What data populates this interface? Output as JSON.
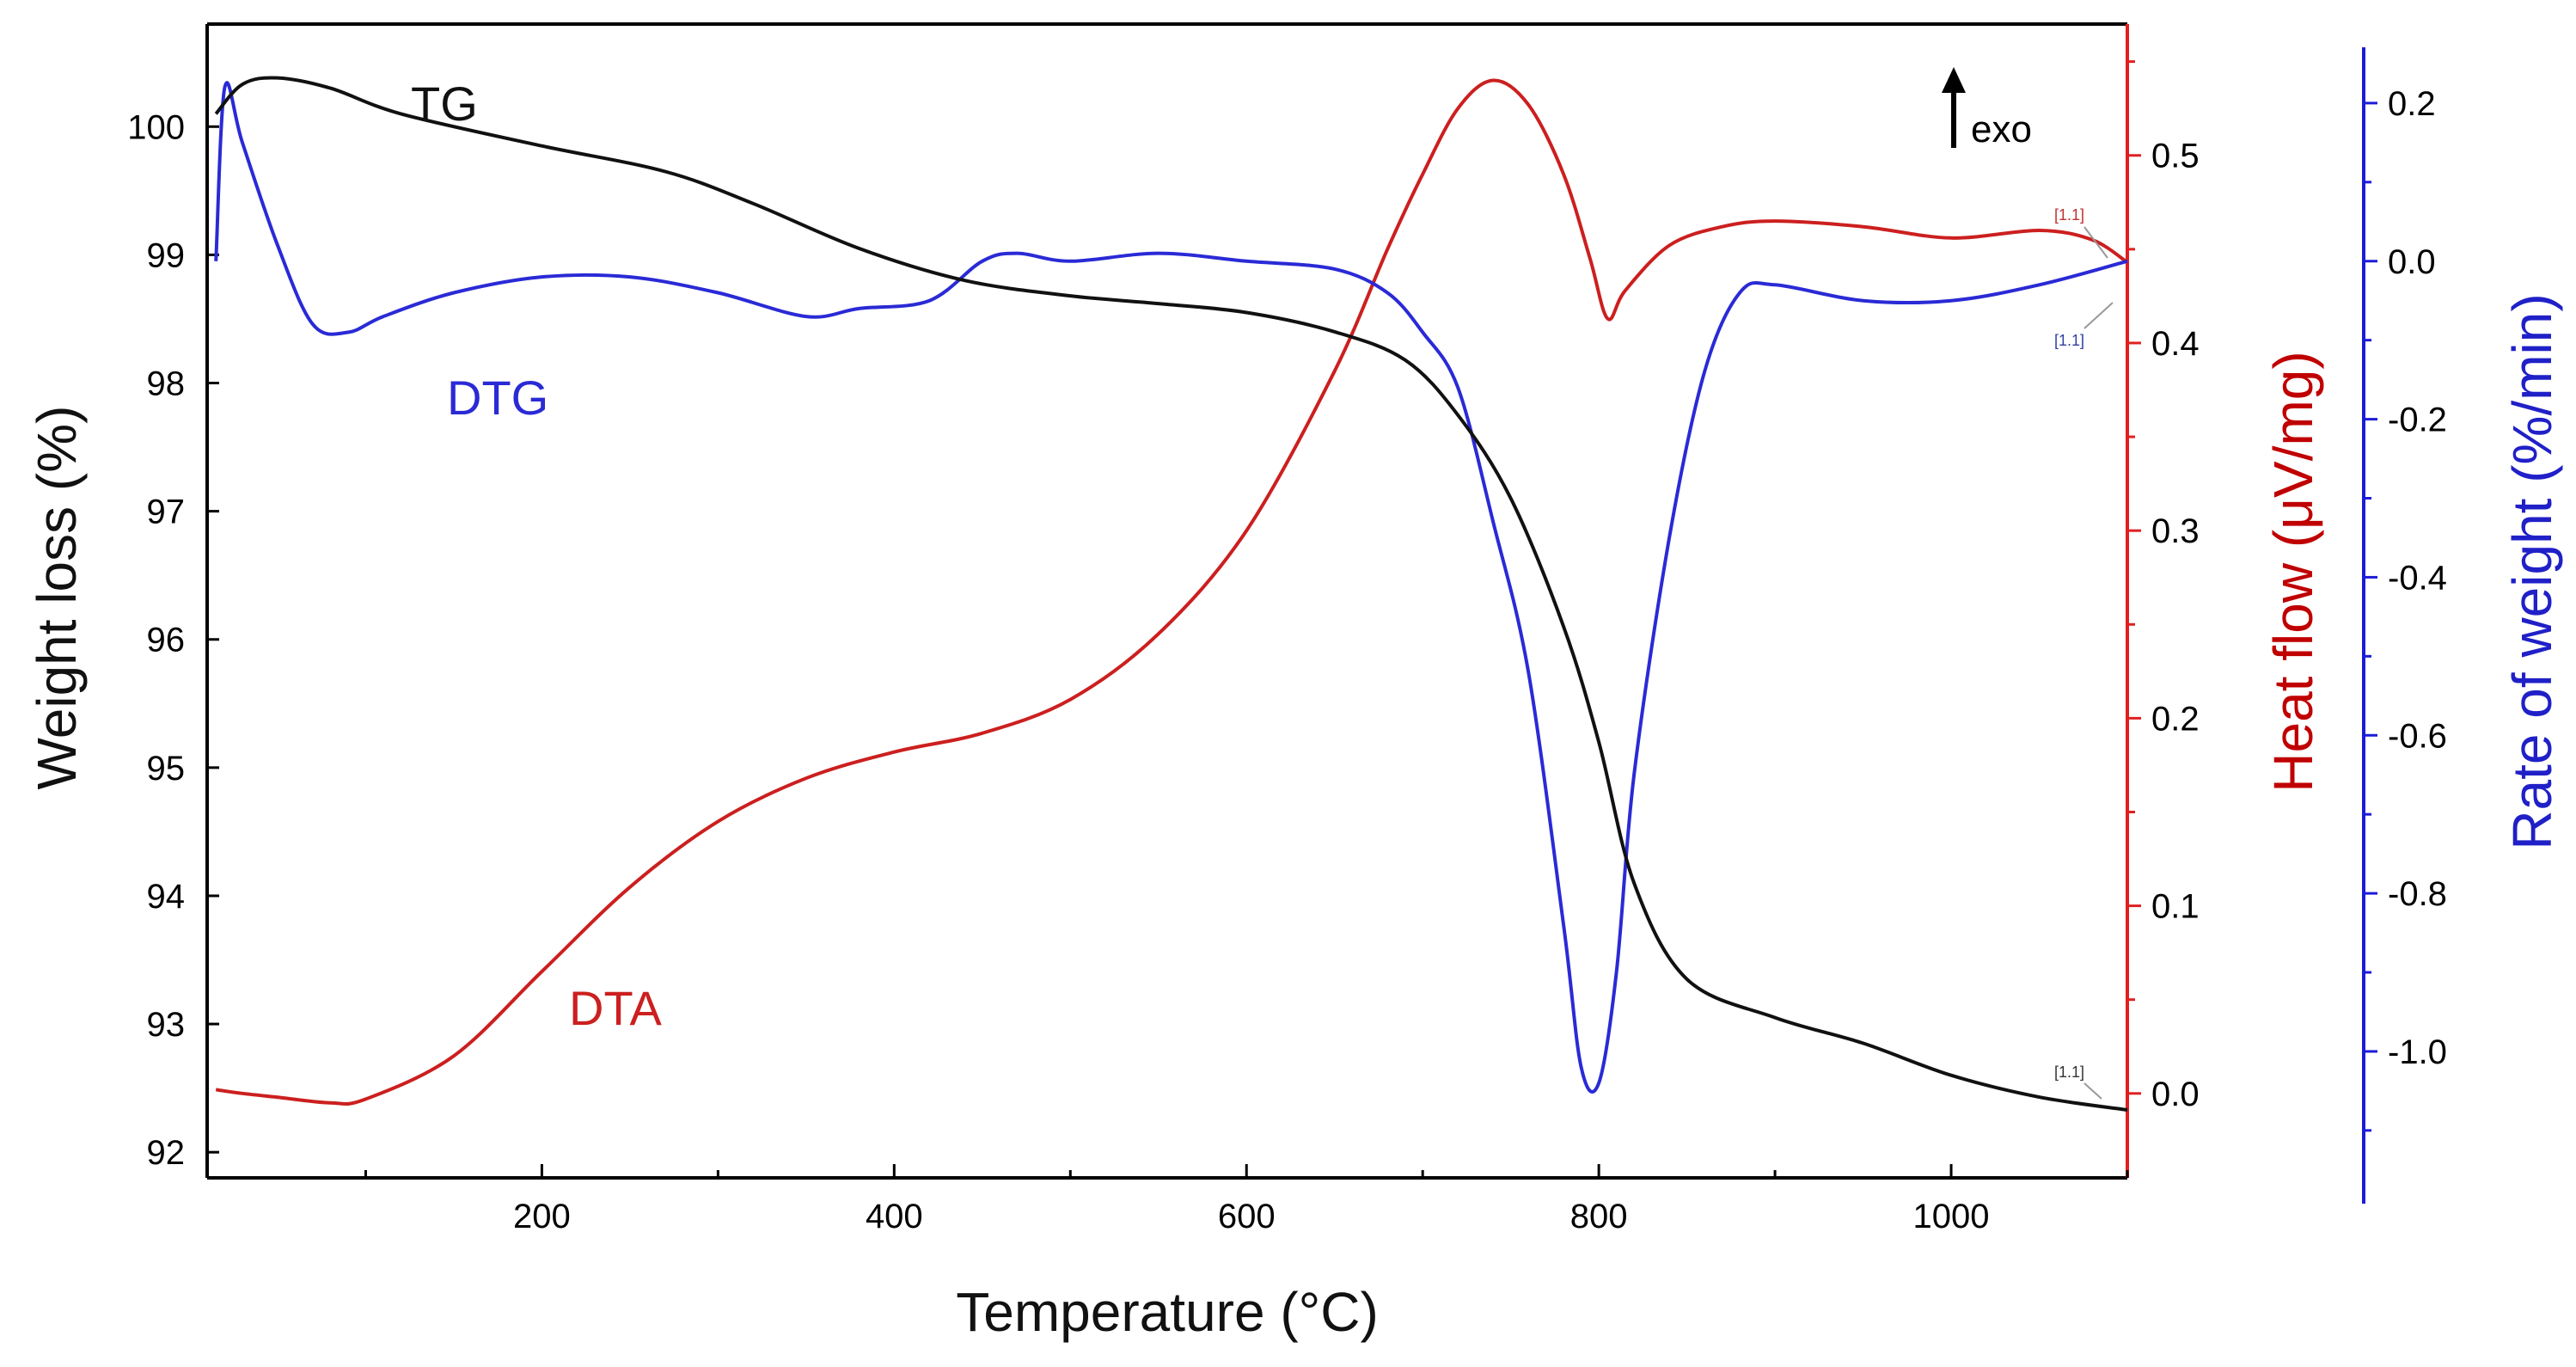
{
  "chart_data": {
    "type": "line",
    "xlabel": "Temperature (°C)",
    "ylabel_left": "Weight loss (%)",
    "ylabel_right1": "Heat flow (μV/mg)",
    "ylabel_right2": "Rate of weight  (%/min)",
    "xlim": [
      10,
      1100
    ],
    "ylim_left": [
      91.8,
      100.8
    ],
    "ylim_right1": [
      -0.045,
      0.57
    ],
    "ylim_right2": [
      -1.16,
      0.3
    ],
    "xticks": [
      200,
      400,
      600,
      800,
      1000
    ],
    "yticks_left": [
      92,
      93,
      94,
      95,
      96,
      97,
      98,
      99,
      100
    ],
    "yticks_right1": [
      0.0,
      0.1,
      0.2,
      0.3,
      0.4,
      0.5
    ],
    "yticks_right2": [
      -1.0,
      -0.8,
      -0.6,
      -0.4,
      -0.2,
      0.0,
      0.2
    ],
    "annotation_exo": "exo",
    "end_marker": "[1.1]",
    "colors": {
      "TG": "#111111",
      "DTA": "#cc1f1f",
      "DTG": "#2a2ad6",
      "red_axis": "#e02020",
      "blue_axis": "#1c1cd8",
      "red_title": "#c00000",
      "blue_title": "#2020c8"
    },
    "series": [
      {
        "name": "TG",
        "axis": "left",
        "x": [
          15,
          30,
          50,
          80,
          120,
          200,
          270,
          320,
          380,
          440,
          500,
          550,
          600,
          650,
          690,
          720,
          750,
          780,
          800,
          820,
          850,
          900,
          950,
          1000,
          1050,
          1100
        ],
        "values": [
          100.1,
          100.33,
          100.38,
          100.3,
          100.1,
          99.85,
          99.65,
          99.4,
          99.05,
          98.8,
          98.68,
          98.62,
          98.55,
          98.4,
          98.18,
          97.75,
          97.1,
          96.1,
          95.2,
          94.1,
          93.35,
          93.05,
          92.85,
          92.6,
          92.43,
          92.33
        ]
      },
      {
        "name": "DTA",
        "axis": "right1",
        "x": [
          15,
          30,
          50,
          80,
          100,
          150,
          200,
          250,
          300,
          350,
          400,
          450,
          500,
          550,
          600,
          650,
          680,
          700,
          720,
          740,
          760,
          780,
          795,
          805,
          815,
          840,
          870,
          900,
          950,
          1000,
          1050,
          1080,
          1100
        ],
        "values": [
          0.002,
          0.0,
          -0.002,
          -0.005,
          -0.003,
          0.02,
          0.065,
          0.11,
          0.145,
          0.168,
          0.182,
          0.192,
          0.21,
          0.245,
          0.3,
          0.385,
          0.45,
          0.49,
          0.525,
          0.54,
          0.527,
          0.49,
          0.445,
          0.413,
          0.428,
          0.452,
          0.462,
          0.465,
          0.462,
          0.456,
          0.46,
          0.455,
          0.443
        ]
      },
      {
        "name": "DTG",
        "axis": "right2",
        "x": [
          15,
          20,
          30,
          50,
          70,
          90,
          110,
          150,
          200,
          250,
          300,
          350,
          380,
          420,
          450,
          470,
          500,
          550,
          600,
          650,
          680,
          700,
          720,
          740,
          760,
          780,
          790,
          800,
          810,
          820,
          840,
          860,
          880,
          900,
          950,
          1000,
          1050,
          1100
        ],
        "values": [
          0.0,
          0.22,
          0.15,
          0.02,
          -0.08,
          -0.09,
          -0.07,
          -0.04,
          -0.02,
          -0.02,
          -0.04,
          -0.07,
          -0.06,
          -0.05,
          0.0,
          0.01,
          0.0,
          0.01,
          0.0,
          -0.01,
          -0.04,
          -0.09,
          -0.16,
          -0.33,
          -0.52,
          -0.84,
          -1.02,
          -1.04,
          -0.9,
          -0.65,
          -0.35,
          -0.14,
          -0.04,
          -0.03,
          -0.05,
          -0.05,
          -0.03,
          0.0
        ]
      }
    ]
  }
}
